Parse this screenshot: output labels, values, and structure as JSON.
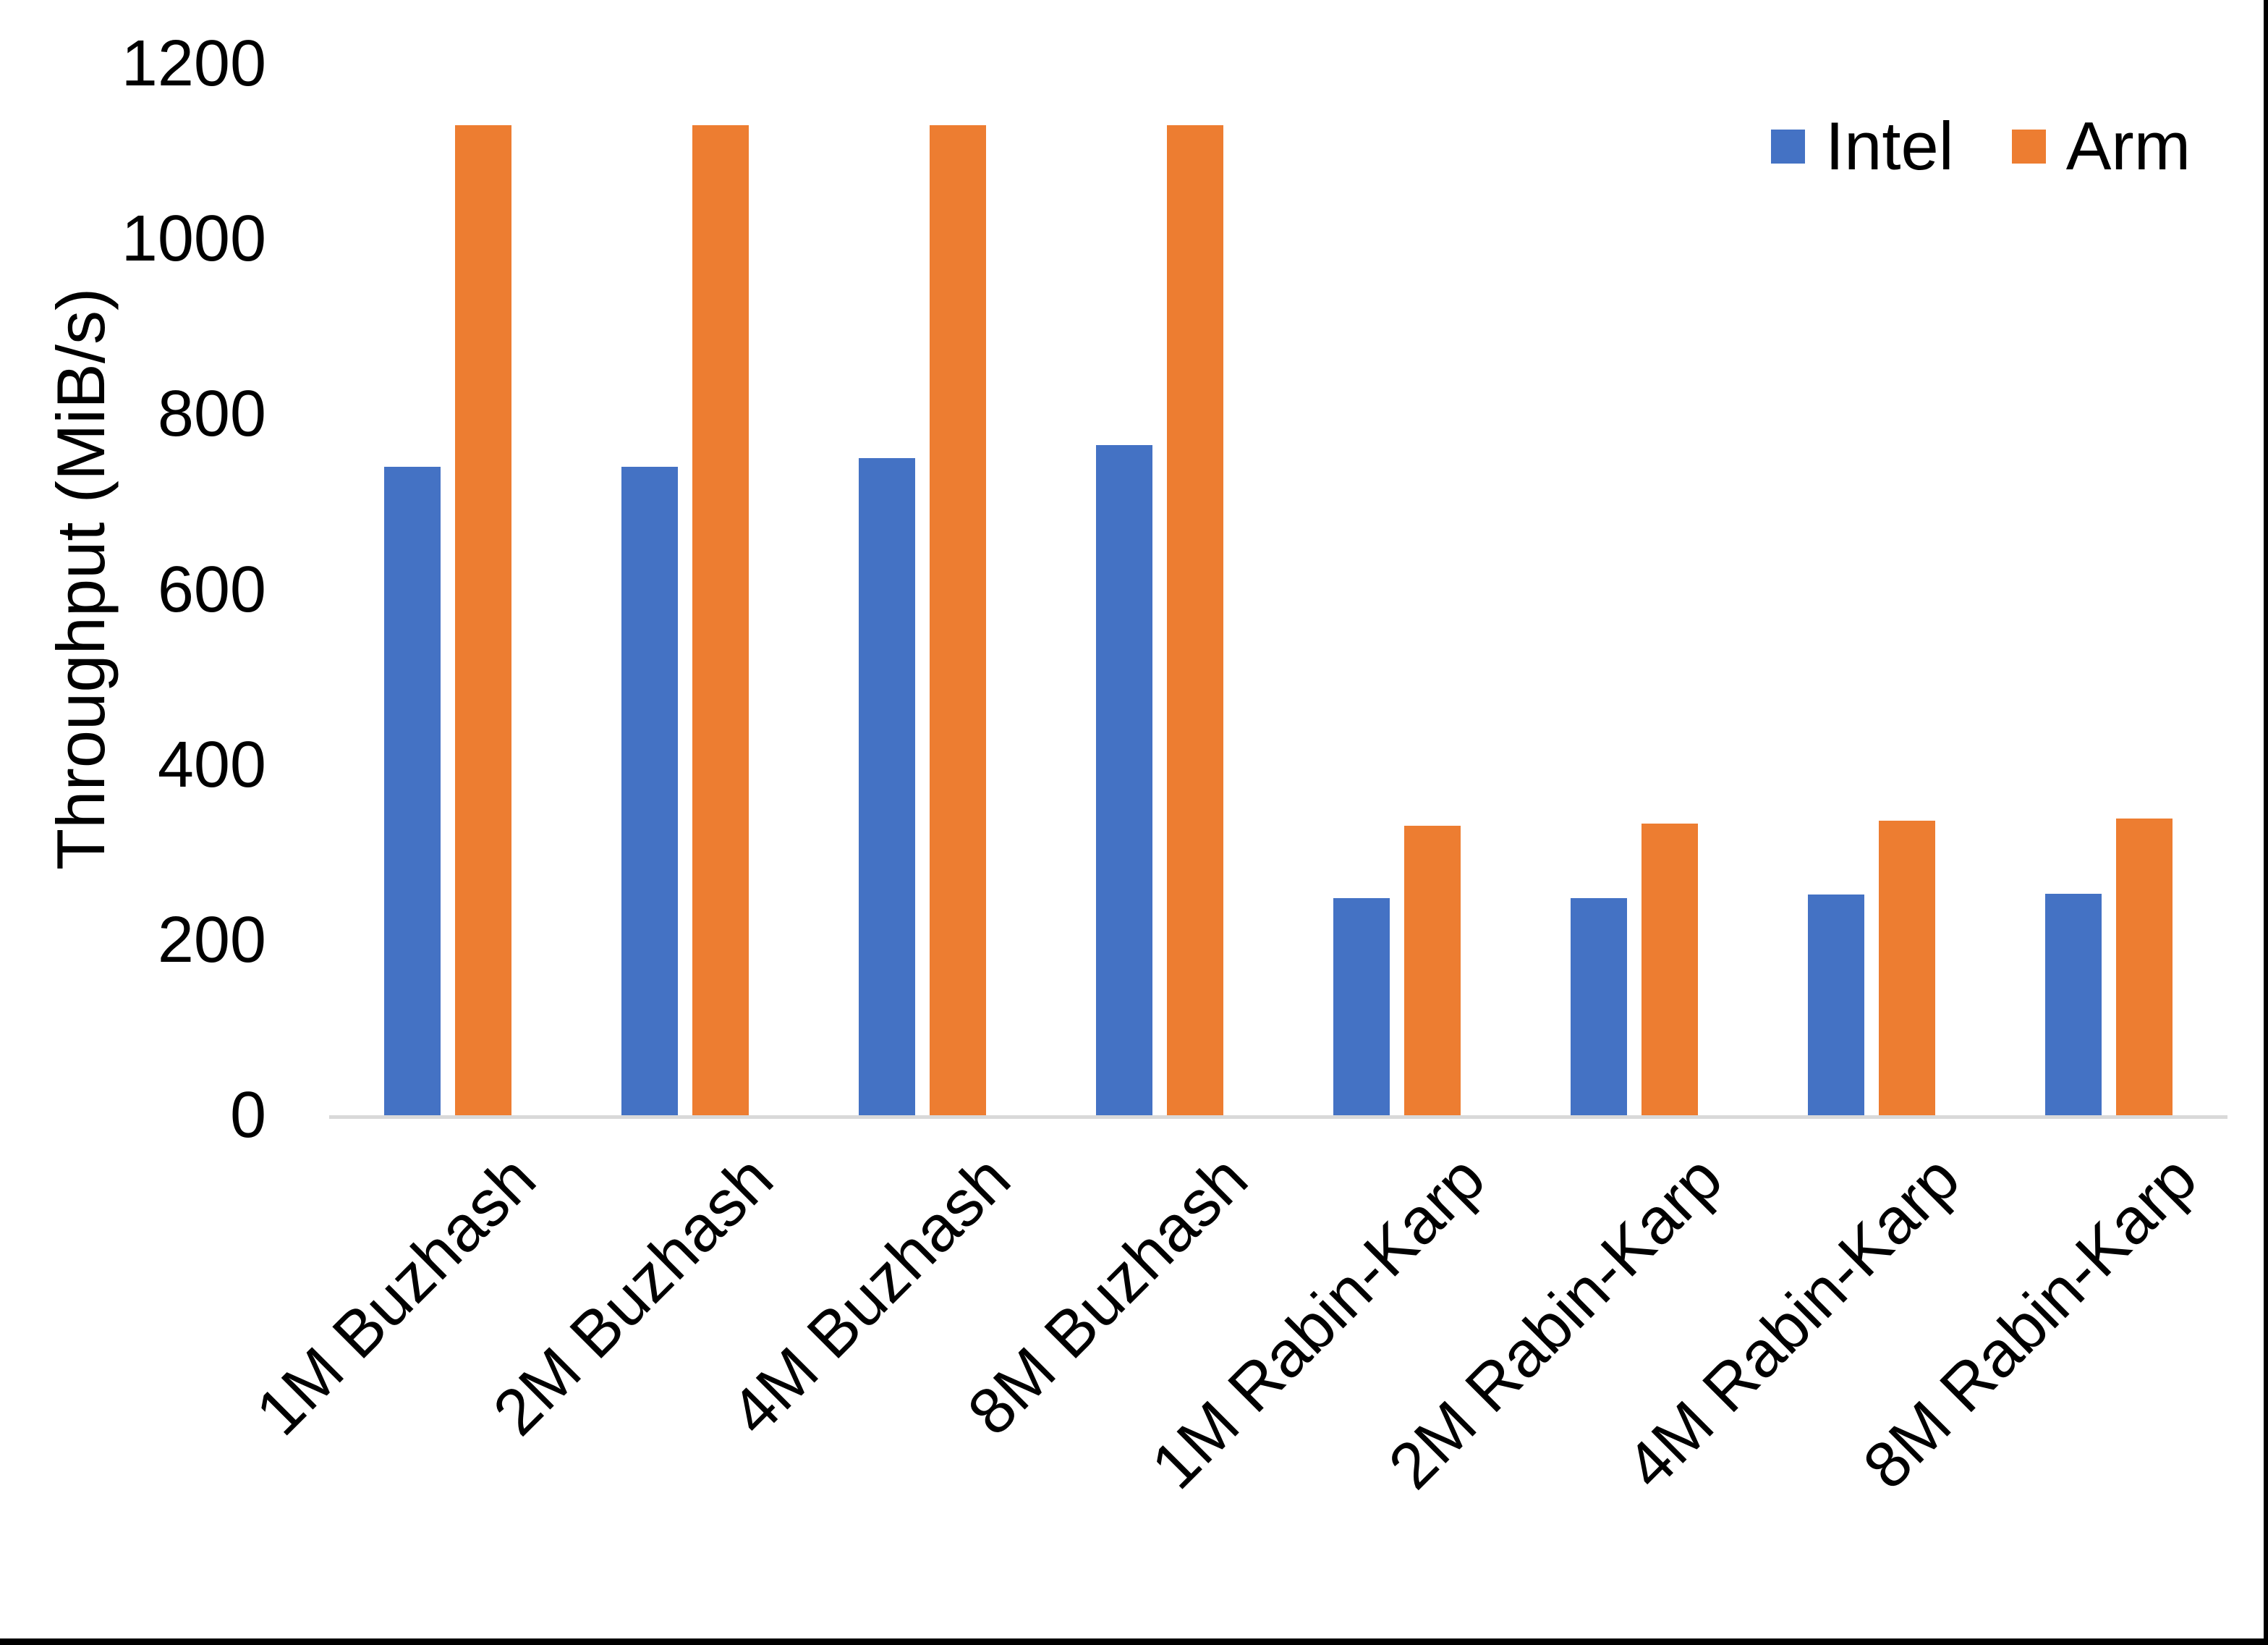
{
  "chart_data": {
    "type": "bar",
    "title": "",
    "categories": [
      "1M Buzhash",
      "2M Buzhash",
      "4M Buzhash",
      "8M Buzhash",
      "1M Rabin-Karp",
      "2M Rabin-Karp",
      "4M Rabin-Karp",
      "8M Rabin-Karp"
    ],
    "series": [
      {
        "name": "Intel",
        "color": "#4472C4",
        "values": [
          740,
          740,
          750,
          765,
          248,
          248,
          252,
          253
        ]
      },
      {
        "name": "Arm",
        "color": "#ED7D31",
        "values": [
          1130,
          1130,
          1130,
          1130,
          330,
          333,
          336,
          339
        ]
      }
    ],
    "xlabel": "",
    "ylabel": "Throughput (MiB/s)",
    "ylim": [
      0,
      1200
    ],
    "yticks": [
      0,
      200,
      400,
      600,
      800,
      1000,
      1200
    ],
    "grid": false,
    "legend_position": "top-right",
    "axis_line_color": "#D9D9D9",
    "text_color": "#000000",
    "frame_strip_color": "#000000"
  }
}
